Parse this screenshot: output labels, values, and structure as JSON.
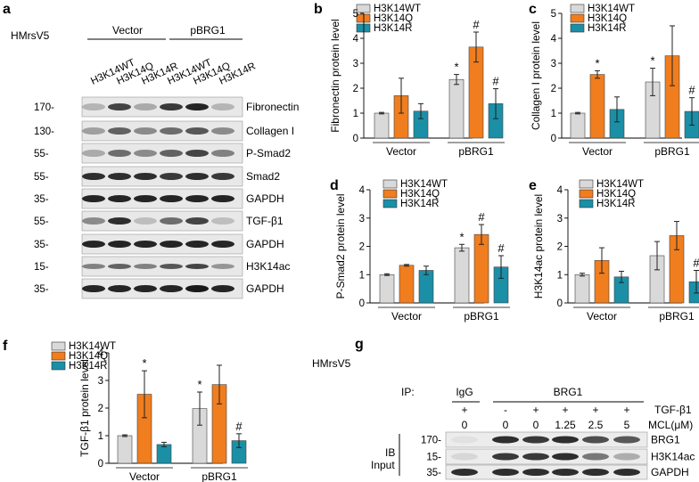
{
  "colors": {
    "wt": "#d9d9d9",
    "q": "#f07d1e",
    "r": "#1b8fa6",
    "axis": "#000000",
    "band": "#1a1a1a"
  },
  "panel_labels": [
    "a",
    "b",
    "c",
    "d",
    "e",
    "f",
    "g"
  ],
  "legend": [
    "H3K14WT",
    "H3K14Q",
    "H3K14R"
  ],
  "blot_a": {
    "cell_line": "HMrsV5",
    "group_labels": [
      "Vector",
      "pBRG1"
    ],
    "lane_labels": [
      "H3K14WT",
      "H3K14Q",
      "H3K14R",
      "H3K14WT",
      "H3K14Q",
      "H3K14R"
    ],
    "rows": [
      {
        "mw": "170-",
        "label": "Fibronectin"
      },
      {
        "mw": "130-",
        "label": "Collagen I"
      },
      {
        "mw": "55-",
        "label": "P-Smad2"
      },
      {
        "mw": "55-",
        "label": "Smad2"
      },
      {
        "mw": "35-",
        "label": "GAPDH"
      },
      {
        "mw": "55-",
        "label": "TGF-β1"
      },
      {
        "mw": "35-",
        "label": "GAPDH"
      },
      {
        "mw": "15-",
        "label": "H3K14ac"
      },
      {
        "mw": "35-",
        "label": "GAPDH"
      }
    ]
  },
  "blot_g": {
    "cell_line": "HMrsV5",
    "ip_label": "IP:",
    "igg_label": "IgG",
    "brg1_label": "BRG1",
    "tgf_label": "TGF-β1",
    "mcl_label": "MCL(μM)",
    "tgf_row": [
      "+",
      "-",
      "+",
      "+",
      "+",
      "+"
    ],
    "mcl_row": [
      "0",
      "0",
      "0",
      "1.25",
      "2.5",
      "5"
    ],
    "ib_label": "IB",
    "input_label": "Input",
    "rows": [
      {
        "mw": "170-",
        "label": "BRG1"
      },
      {
        "mw": "15-",
        "label": "H3K14ac"
      },
      {
        "mw": "35-",
        "label": "GAPDH"
      }
    ]
  },
  "chart_data": [
    {
      "panel": "b",
      "type": "bar",
      "categories": [
        "Vector",
        "pBRG1"
      ],
      "ylabel": "Fibronectin protein level",
      "ylim": [
        0,
        5
      ],
      "yticks": [
        0,
        1,
        2,
        3,
        4,
        5
      ],
      "series": [
        {
          "name": "H3K14WT",
          "values": [
            1.0,
            2.35
          ],
          "errors": [
            0.03,
            0.2
          ],
          "marks": [
            "",
            "*"
          ]
        },
        {
          "name": "H3K14Q",
          "values": [
            1.7,
            3.65
          ],
          "errors": [
            0.7,
            0.6
          ],
          "marks": [
            "",
            "#"
          ]
        },
        {
          "name": "H3K14R",
          "values": [
            1.08,
            1.38
          ],
          "errors": [
            0.3,
            0.6
          ],
          "marks": [
            "",
            "#"
          ]
        }
      ]
    },
    {
      "panel": "c",
      "type": "bar",
      "categories": [
        "Vector",
        "pBRG1"
      ],
      "ylabel": "Collagen I protein level",
      "ylim": [
        0,
        5
      ],
      "yticks": [
        0,
        1,
        2,
        3,
        4,
        5
      ],
      "series": [
        {
          "name": "H3K14WT",
          "values": [
            1.0,
            2.25
          ],
          "errors": [
            0.03,
            0.55
          ],
          "marks": [
            "",
            "*"
          ]
        },
        {
          "name": "H3K14Q",
          "values": [
            2.55,
            3.3
          ],
          "errors": [
            0.15,
            1.2
          ],
          "marks": [
            "*",
            ""
          ]
        },
        {
          "name": "H3K14R",
          "values": [
            1.15,
            1.07
          ],
          "errors": [
            0.5,
            0.55
          ],
          "marks": [
            "",
            "#"
          ]
        }
      ]
    },
    {
      "panel": "d",
      "type": "bar",
      "categories": [
        "Vector",
        "pBRG1"
      ],
      "ylabel": "P-Smad2 protein level",
      "ylim": [
        0,
        4
      ],
      "yticks": [
        0,
        1,
        2,
        3,
        4
      ],
      "series": [
        {
          "name": "H3K14WT",
          "values": [
            1.0,
            1.95
          ],
          "errors": [
            0.03,
            0.12
          ],
          "marks": [
            "",
            "*"
          ]
        },
        {
          "name": "H3K14Q",
          "values": [
            1.33,
            2.42
          ],
          "errors": [
            0.03,
            0.35
          ],
          "marks": [
            "",
            "#"
          ]
        },
        {
          "name": "H3K14R",
          "values": [
            1.15,
            1.27
          ],
          "errors": [
            0.15,
            0.4
          ],
          "marks": [
            "",
            "#"
          ]
        }
      ]
    },
    {
      "panel": "e",
      "type": "bar",
      "categories": [
        "Vector",
        "pBRG1"
      ],
      "ylabel": "H3K14ac protein level",
      "ylim": [
        0,
        4
      ],
      "yticks": [
        0,
        1,
        2,
        3,
        4
      ],
      "series": [
        {
          "name": "H3K14WT",
          "values": [
            1.0,
            1.67
          ],
          "errors": [
            0.05,
            0.5
          ],
          "marks": [
            "",
            ""
          ]
        },
        {
          "name": "H3K14Q",
          "values": [
            1.5,
            2.38
          ],
          "errors": [
            0.45,
            0.5
          ],
          "marks": [
            "",
            ""
          ]
        },
        {
          "name": "H3K14R",
          "values": [
            0.92,
            0.75
          ],
          "errors": [
            0.2,
            0.4
          ],
          "marks": [
            "",
            "#"
          ]
        }
      ]
    },
    {
      "panel": "f",
      "type": "bar",
      "categories": [
        "Vector",
        "pBRG1"
      ],
      "ylabel": "TGF-β1 protein level",
      "ylim": [
        0,
        4
      ],
      "yticks": [
        0,
        1,
        2,
        3,
        4
      ],
      "series": [
        {
          "name": "H3K14WT",
          "values": [
            1.0,
            1.98
          ],
          "errors": [
            0.03,
            0.6
          ],
          "marks": [
            "",
            "*"
          ]
        },
        {
          "name": "H3K14Q",
          "values": [
            2.5,
            2.85
          ],
          "errors": [
            0.85,
            0.7
          ],
          "marks": [
            "*",
            ""
          ]
        },
        {
          "name": "H3K14R",
          "values": [
            0.68,
            0.82
          ],
          "errors": [
            0.08,
            0.25
          ],
          "marks": [
            "",
            "#"
          ]
        }
      ]
    }
  ]
}
